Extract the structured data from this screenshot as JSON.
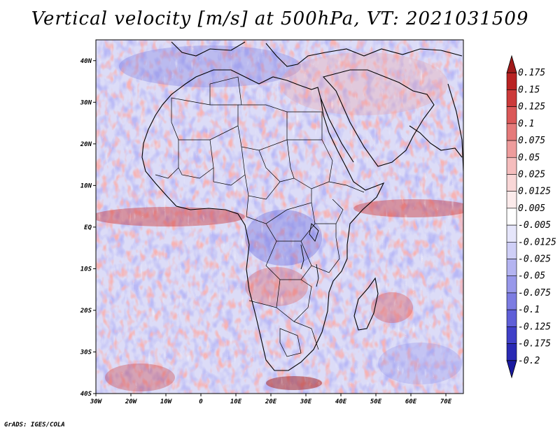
{
  "title": "Vertical velocity [m/s] at 500hPa, VT: 2021031509",
  "credit": "GrADS: IGES/COLA",
  "map": {
    "variable": "Vertical velocity",
    "units": "m/s",
    "level": "500hPa",
    "valid_time": "2021031509",
    "lon_range": [
      -30,
      75
    ],
    "lat_range": [
      -40,
      45
    ],
    "lon_ticks": [
      {
        "value": -30,
        "label": "30W"
      },
      {
        "value": -20,
        "label": "20W"
      },
      {
        "value": -10,
        "label": "10W"
      },
      {
        "value": 0,
        "label": "0"
      },
      {
        "value": 10,
        "label": "10E"
      },
      {
        "value": 20,
        "label": "20E"
      },
      {
        "value": 30,
        "label": "30E"
      },
      {
        "value": 40,
        "label": "40E"
      },
      {
        "value": 50,
        "label": "50E"
      },
      {
        "value": 60,
        "label": "60E"
      },
      {
        "value": 70,
        "label": "70E"
      }
    ],
    "lat_ticks": [
      {
        "value": 40,
        "label": "40N"
      },
      {
        "value": 30,
        "label": "30N"
      },
      {
        "value": 20,
        "label": "20N"
      },
      {
        "value": 10,
        "label": "10N"
      },
      {
        "value": 0,
        "label": "EQ"
      },
      {
        "value": -10,
        "label": "10S"
      },
      {
        "value": -20,
        "label": "20S"
      },
      {
        "value": -30,
        "label": "30S"
      },
      {
        "value": -40,
        "label": "40S"
      }
    ]
  },
  "colorbar": {
    "levels": [
      {
        "label": "0.175",
        "color": "#a01a1a"
      },
      {
        "label": "0.15",
        "color": "#b92222"
      },
      {
        "label": "0.125",
        "color": "#cc3a3a"
      },
      {
        "label": "0.1",
        "color": "#db5858"
      },
      {
        "label": "0.075",
        "color": "#e57a7a"
      },
      {
        "label": "0.05",
        "color": "#ee9c9c"
      },
      {
        "label": "0.025",
        "color": "#f5bdbd"
      },
      {
        "label": "0.0125",
        "color": "#f9d7d7"
      },
      {
        "label": "0.005",
        "color": "#fcebeb"
      },
      {
        "label": "-0.005",
        "color": "#ffffff"
      },
      {
        "label": "-0.0125",
        "color": "#e6e6fb"
      },
      {
        "label": "-0.025",
        "color": "#cfcff7"
      },
      {
        "label": "-0.05",
        "color": "#b4b4f1"
      },
      {
        "label": "-0.075",
        "color": "#9898ea"
      },
      {
        "label": "-0.1",
        "color": "#7c7ce2"
      },
      {
        "label": "-0.125",
        "color": "#5f5fd8"
      },
      {
        "label": "-0.175",
        "color": "#4040c8"
      },
      {
        "label": "-0.2",
        "color": "#2a2ab4"
      }
    ],
    "bottom_color": "#1a1aa0"
  }
}
